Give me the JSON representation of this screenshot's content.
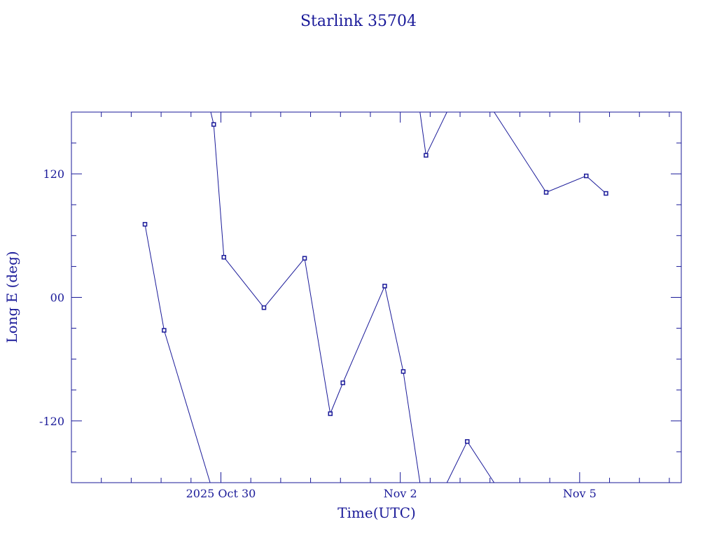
{
  "chart_data": {
    "type": "line",
    "title": "Starlink 35704",
    "xlabel": "Time(UTC)",
    "ylabel": "Long E (deg)",
    "x_ticks": [
      {
        "label": "2025 Oct 30",
        "x": 0.0
      },
      {
        "label": "Nov  2",
        "x": 3.0
      },
      {
        "label": "Nov  5",
        "x": 6.0
      }
    ],
    "y_ticks": [
      {
        "label": "120",
        "y": 120
      },
      {
        "label": "00",
        "y": 0
      },
      {
        "label": "-120",
        "y": -120
      }
    ],
    "xlim": [
      -2.5,
      7.7
    ],
    "ylim": [
      -180,
      180
    ],
    "x_unit": "days relative to 2025 Oct 30 00:00 UTC",
    "series": [
      {
        "values": [
          {
            "x": -1.27,
            "y": 71
          },
          {
            "x": -0.95,
            "y": -32
          },
          {
            "x": -0.18,
            "y": -180,
            "marker": false
          },
          {
            "x": null,
            "y": null
          },
          {
            "x": -0.17,
            "y": 180,
            "marker": false
          },
          {
            "x": -0.12,
            "y": 168
          },
          {
            "x": 0.05,
            "y": 39
          },
          {
            "x": 0.72,
            "y": -10
          },
          {
            "x": 1.4,
            "y": 38
          },
          {
            "x": 1.83,
            "y": -113
          },
          {
            "x": 2.04,
            "y": -83
          },
          {
            "x": 2.74,
            "y": 11
          },
          {
            "x": 3.05,
            "y": -72
          },
          {
            "x": 3.33,
            "y": -180,
            "marker": false
          },
          {
            "x": null,
            "y": null
          },
          {
            "x": 3.33,
            "y": 180,
            "marker": false
          },
          {
            "x": 3.43,
            "y": 138
          },
          {
            "x": 3.78,
            "y": 180,
            "marker": false
          },
          {
            "x": null,
            "y": null
          },
          {
            "x": 3.78,
            "y": -180,
            "marker": false
          },
          {
            "x": 4.12,
            "y": -140
          },
          {
            "x": 4.57,
            "y": -180,
            "marker": false
          },
          {
            "x": null,
            "y": null
          },
          {
            "x": 4.57,
            "y": 180,
            "marker": false
          },
          {
            "x": 5.44,
            "y": 102
          },
          {
            "x": 6.11,
            "y": 118
          },
          {
            "x": 6.44,
            "y": 101
          }
        ]
      }
    ],
    "grid": false,
    "colors": {
      "ink": "#1a1a99",
      "background": "#ffffff"
    }
  }
}
